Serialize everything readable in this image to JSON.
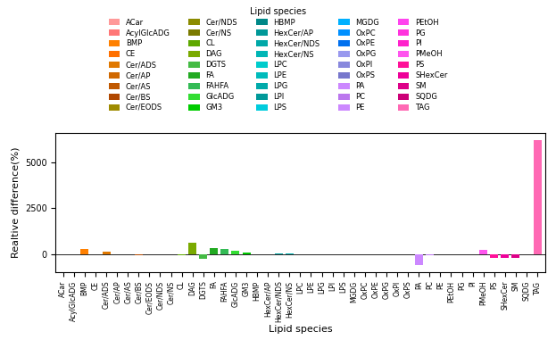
{
  "chart_data": {
    "type": "bar",
    "categories": [
      "ACar",
      "AcylGlcADG",
      "BMP",
      "CE",
      "Cer/ADS",
      "Cer/AP",
      "Cer/AS",
      "Cer/BS",
      "Cer/EODS",
      "Cer/NDS",
      "Cer/NS",
      "CL",
      "DAG",
      "DGTS",
      "FA",
      "FAHFA",
      "GlcADG",
      "GM3",
      "HBMP",
      "HexCer/AP",
      "HexCer/NDS",
      "HexCer/NS",
      "LPC",
      "LPE",
      "LPG",
      "LPI",
      "LPS",
      "MGDG",
      "OxPC",
      "OxPE",
      "OxPG",
      "OxPI",
      "OxPS",
      "PA",
      "PC",
      "PE",
      "PEtOH",
      "PG",
      "PI",
      "PMeOH",
      "PS",
      "SHexCer",
      "SM",
      "SQDG",
      "TAG"
    ],
    "values": [
      -3,
      -5,
      280,
      -8,
      160,
      -12,
      -5,
      -25,
      -15,
      -5,
      -8,
      -60,
      650,
      -230,
      360,
      290,
      210,
      100,
      8,
      18,
      40,
      35,
      25,
      18,
      20,
      8,
      5,
      -5,
      -8,
      -10,
      -5,
      -5,
      -5,
      -580,
      -25,
      -5,
      -8,
      -5,
      -5,
      260,
      -165,
      -200,
      -195,
      8,
      6200
    ],
    "colors": [
      "#FF9999",
      "#FF7777",
      "#FF8000",
      "#FF7000",
      "#E07800",
      "#D06800",
      "#C05800",
      "#B04800",
      "#9E8B00",
      "#8B8B00",
      "#7A7A00",
      "#5EA800",
      "#7AAA00",
      "#44BB44",
      "#22AA22",
      "#33BB55",
      "#33DD33",
      "#00CC00",
      "#008888",
      "#009898",
      "#00A8A8",
      "#00B5B5",
      "#00CCCC",
      "#00BBBB",
      "#00AAAA",
      "#009999",
      "#00CCDD",
      "#00B0FF",
      "#0090FF",
      "#0070EE",
      "#9999EE",
      "#8888DD",
      "#7777CC",
      "#CC88FF",
      "#BB77EE",
      "#CC88FF",
      "#FF44EE",
      "#FF33DD",
      "#FF22CC",
      "#FF55EE",
      "#FF1199",
      "#EE0099",
      "#DD0088",
      "#CC0077",
      "#FF69B4"
    ],
    "xlabel": "Lipid species",
    "ylabel": "Realtive difference(%)",
    "ylim": [
      -950,
      6600
    ],
    "yticks": [
      0,
      2500,
      5000
    ],
    "legend": "upper center",
    "legend_title": "Lipid species",
    "grid": false
  }
}
